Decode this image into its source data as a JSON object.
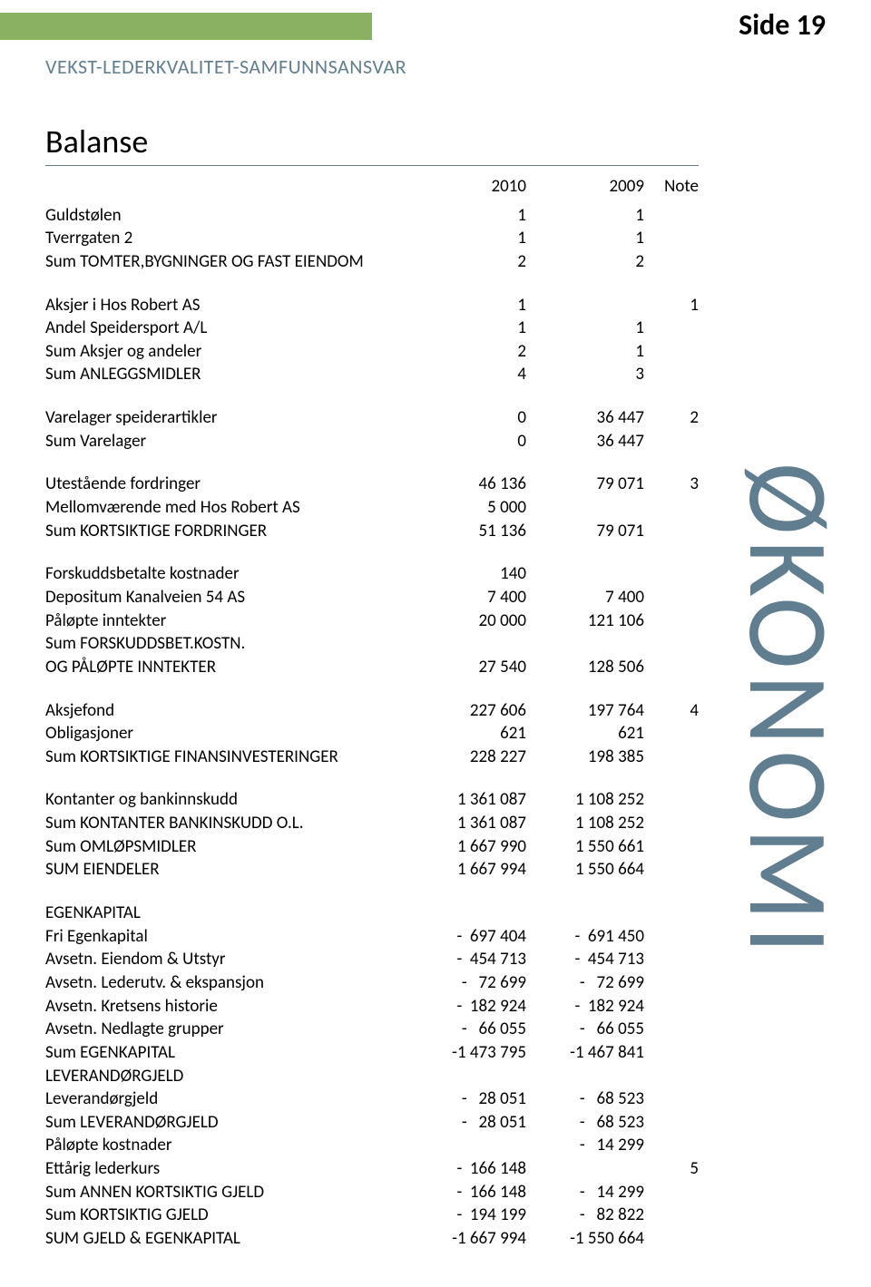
{
  "page": {
    "header_text": "VEKST-LEDERKVALITET-SAMFUNNSANSVAR",
    "page_label": "Side 19",
    "title": "Balanse",
    "side_label": "ØKONOMI",
    "colors": {
      "green_bar": "#8ab062",
      "blue_gray": "#617e90",
      "text": "#000000",
      "background": "#ffffff"
    },
    "columns": {
      "c2010": "2010",
      "c2009": "2009",
      "note": "Note"
    },
    "rows": [
      {
        "label": " Guldstølen",
        "c2010": "1",
        "c2009": "1",
        "note": ""
      },
      {
        "label": " Tverrgaten 2",
        "c2010": "1",
        "c2009": "1",
        "note": ""
      },
      {
        "label": " Sum TOMTER,BYGNINGER OG FAST EIENDOM",
        "c2010": "2",
        "c2009": "2",
        "note": ""
      },
      {
        "spacer": true
      },
      {
        "label": " Aksjer i Hos Robert AS",
        "c2010": "1",
        "c2009": "",
        "note": "1"
      },
      {
        "label": " Andel Speidersport A/L",
        "c2010": "1",
        "c2009": "1",
        "note": ""
      },
      {
        "label": " Sum Aksjer og andeler",
        "c2010": "2",
        "c2009": "1",
        "note": ""
      },
      {
        "label": " Sum ANLEGGSMIDLER",
        "c2010": "4",
        "c2009": "3",
        "note": ""
      },
      {
        "spacer": true
      },
      {
        "label": " Varelager speiderartikler",
        "c2010": "0",
        "c2009": "36 447",
        "note": "2"
      },
      {
        "label": " Sum Varelager",
        "c2010": "0",
        "c2009": "36 447",
        "note": ""
      },
      {
        "spacer": true
      },
      {
        "label": " Utestående fordringer",
        "c2010": "46 136",
        "c2009": "79 071",
        "note": "3"
      },
      {
        "label": " Mellomværende med Hos Robert AS",
        "c2010": "5 000",
        "c2009": "",
        "note": ""
      },
      {
        "label": " Sum KORTSIKTIGE FORDRINGER",
        "c2010": "51 136",
        "c2009": "79 071",
        "note": ""
      },
      {
        "spacer": true
      },
      {
        "label": " Forskuddsbetalte kostnader",
        "c2010": "140",
        "c2009": "",
        "note": ""
      },
      {
        "label": " Depositum Kanalveien 54 AS",
        "c2010": "7 400",
        "c2009": "7 400",
        "note": ""
      },
      {
        "label": "  Påløpte inntekter",
        "c2010": "20 000",
        "c2009": "121 106",
        "note": ""
      },
      {
        "label": " Sum FORSKUDDSBET.KOSTN.",
        "c2010": "",
        "c2009": "",
        "note": ""
      },
      {
        "label": " OG PÅLØPTE INNTEKTER",
        "c2010": "27 540",
        "c2009": "128 506",
        "note": ""
      },
      {
        "spacer": true
      },
      {
        "label": " Aksjefond",
        "c2010": "227 606",
        "c2009": "197 764",
        "note": "4"
      },
      {
        "label": " Obligasjoner",
        "c2010": "621",
        "c2009": "621",
        "note": ""
      },
      {
        "label": " Sum KORTSIKTIGE FINANSINVESTERINGER",
        "c2010": "228 227",
        "c2009": "198 385",
        "note": ""
      },
      {
        "spacer": true
      },
      {
        "label": "Kontanter og bankinnskudd",
        "c2010": "1 361 087",
        "c2009": "1 108 252",
        "note": ""
      },
      {
        "label": "Sum KONTANTER BANKINSKUDD O.L.",
        "c2010": "1 361 087",
        "c2009": "1 108 252",
        "note": ""
      },
      {
        "label": "Sum OMLØPSMIDLER",
        "c2010": "1 667 990",
        "c2009": "1 550 661",
        "note": ""
      },
      {
        "label": "SUM EIENDELER",
        "c2010": "1 667 994",
        "c2009": "1 550 664",
        "note": ""
      },
      {
        "spacer": true
      },
      {
        "label": "EGENKAPITAL",
        "c2010": "",
        "c2009": "",
        "note": ""
      },
      {
        "label": " Fri Egenkapital",
        "c2010": "-  697 404",
        "c2009": "-  691 450",
        "note": ""
      },
      {
        "label": "Avsetn. Eiendom & Utstyr",
        "c2010": "-  454 713",
        "c2009": "-  454 713",
        "note": ""
      },
      {
        "label": "Avsetn. Lederutv. & ekspansjon",
        "c2010": "-   72 699",
        "c2009": "-   72 699",
        "note": ""
      },
      {
        "label": "Avsetn. Kretsens historie",
        "c2010": "-  182 924",
        "c2009": "-  182 924",
        "note": ""
      },
      {
        "label": "Avsetn. Nedlagte grupper",
        "c2010": "-   66 055",
        "c2009": "-   66 055",
        "note": ""
      },
      {
        "label": "Sum EGENKAPITAL",
        "c2010": "-1 473 795",
        "c2009": "-1 467 841",
        "note": ""
      },
      {
        "label": "LEVERANDØRGJELD",
        "c2010": "",
        "c2009": "",
        "note": ""
      },
      {
        "label": "Leverandørgjeld",
        "c2010": "-   28 051",
        "c2009": "-   68 523",
        "note": ""
      },
      {
        "label": "Sum LEVERANDØRGJELD",
        "c2010": "-   28 051",
        "c2009": "-   68 523",
        "note": ""
      },
      {
        "label": "Påløpte kostnader",
        "c2010": "",
        "c2009": "-   14 299",
        "note": ""
      },
      {
        "label": "Ettårig lederkurs",
        "c2010": "-  166 148",
        "c2009": "",
        "note": "5"
      },
      {
        "label": "Sum ANNEN KORTSIKTIG GJELD",
        "c2010": "-  166 148",
        "c2009": "-   14 299",
        "note": ""
      },
      {
        "label": "Sum KORTSIKTIG GJELD",
        "c2010": "-  194 199",
        "c2009": "-   82 822",
        "note": ""
      },
      {
        "label": "SUM GJELD & EGENKAPITAL",
        "c2010": "-1 667 994",
        "c2009": "-1 550 664",
        "note": ""
      }
    ]
  }
}
